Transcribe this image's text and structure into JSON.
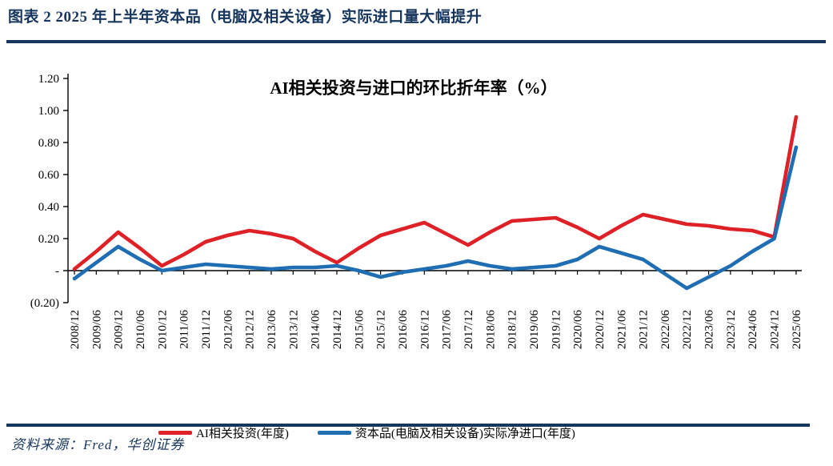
{
  "header": {
    "title": "图表 2   2025 年上半年资本品（电脑及相关设备）实际进口量大幅提升"
  },
  "footer": {
    "source": "资料来源：Fred，华创证券"
  },
  "colors": {
    "navy": "#17365D",
    "red": "#DE2126",
    "blue": "#1F6EB4",
    "axis": "#000000"
  },
  "chart_data": {
    "type": "line",
    "title": "AI相关投资与进口的环比折年率（%）",
    "xlabel": "",
    "ylabel": "",
    "ylim": [
      -0.2,
      1.2
    ],
    "grid": false,
    "legend_position": "bottom",
    "y_ticks": [
      {
        "label": "1.20",
        "value": 1.2
      },
      {
        "label": "1.00",
        "value": 1.0
      },
      {
        "label": "0.80",
        "value": 0.8
      },
      {
        "label": "0.60",
        "value": 0.6
      },
      {
        "label": "0.40",
        "value": 0.4
      },
      {
        "label": "0.20",
        "value": 0.2
      },
      {
        "label": "-",
        "value": 0.0
      },
      {
        "label": "(0.20)",
        "value": -0.2
      }
    ],
    "categories": [
      "2008/12",
      "2009/06",
      "2009/12",
      "2010/06",
      "2010/12",
      "2011/06",
      "2011/12",
      "2012/06",
      "2012/12",
      "2013/06",
      "2013/12",
      "2014/06",
      "2014/12",
      "2015/06",
      "2015/12",
      "2016/06",
      "2016/12",
      "2017/06",
      "2017/12",
      "2018/06",
      "2018/12",
      "2019/06",
      "2019/12",
      "2020/06",
      "2020/12",
      "2021/06",
      "2021/12",
      "2022/06",
      "2022/12",
      "2023/06",
      "2023/12",
      "2024/06",
      "2024/12",
      "2025/06"
    ],
    "series": [
      {
        "name": "AI相关投资(年度)",
        "color_key": "red",
        "values": [
          0.01,
          0.12,
          0.24,
          0.14,
          0.03,
          0.1,
          0.18,
          0.22,
          0.25,
          0.23,
          0.2,
          0.12,
          0.05,
          0.14,
          0.22,
          0.26,
          0.3,
          0.23,
          0.16,
          0.24,
          0.31,
          0.32,
          0.33,
          0.27,
          0.2,
          0.28,
          0.35,
          0.32,
          0.29,
          0.28,
          0.26,
          0.25,
          0.21,
          0.96
        ]
      },
      {
        "name": "资本品(电脑及相关设备)实际净进口(年度)",
        "color_key": "blue",
        "values": [
          -0.05,
          0.05,
          0.15,
          0.07,
          0.0,
          0.02,
          0.04,
          0.03,
          0.02,
          0.01,
          0.02,
          0.02,
          0.03,
          0.0,
          -0.04,
          -0.01,
          0.01,
          0.03,
          0.06,
          0.03,
          0.01,
          0.02,
          0.03,
          0.07,
          0.15,
          0.11,
          0.07,
          -0.02,
          -0.11,
          -0.04,
          0.03,
          0.12,
          0.2,
          0.77
        ]
      }
    ]
  }
}
